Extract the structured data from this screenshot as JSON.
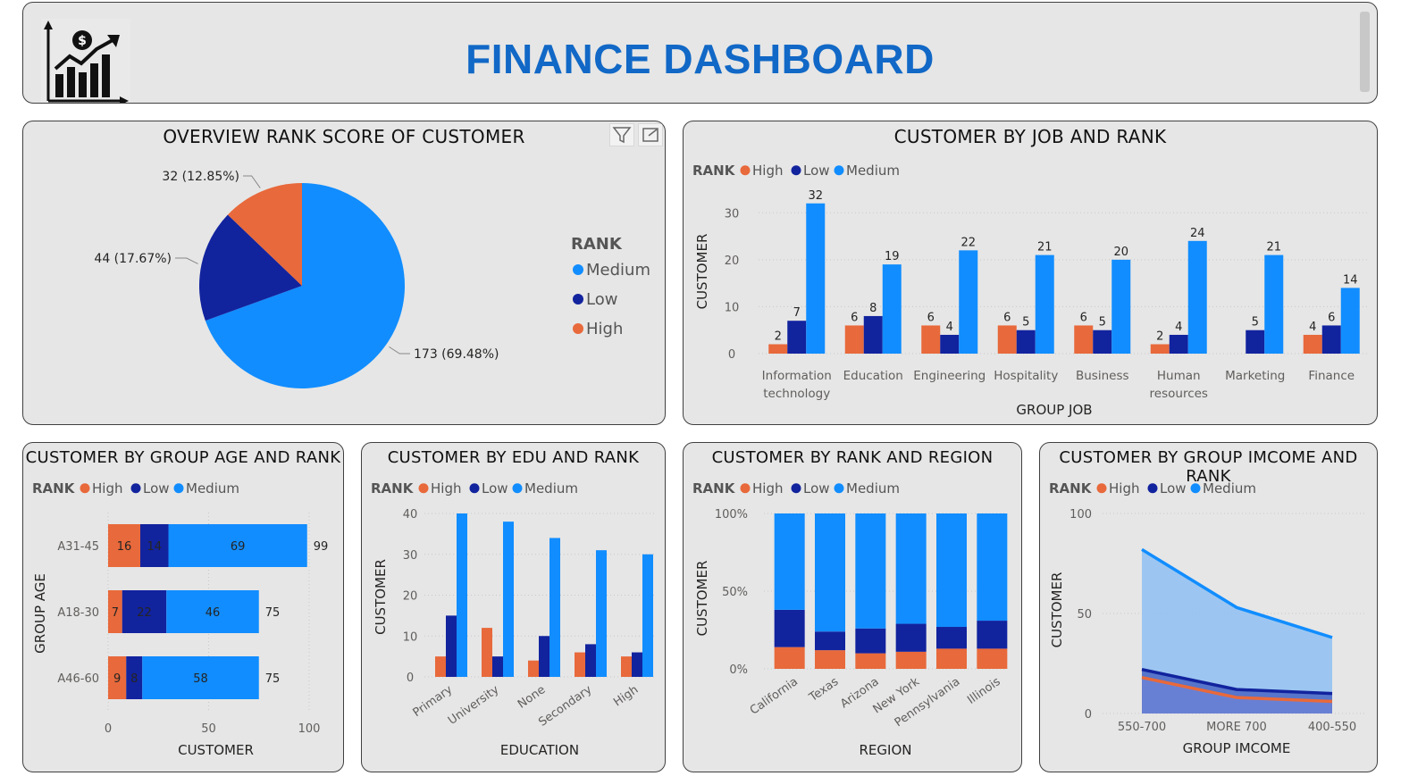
{
  "header": {
    "title": "FINANCE DASHBOARD"
  },
  "colors": {
    "high": "#e8693b",
    "low": "#12239e",
    "medium": "#118dff",
    "panel_bg": "#e6e6e6",
    "title_blue": "#1168c6"
  },
  "legend": {
    "title": "RANK",
    "high": "High",
    "low": "Low",
    "medium": "Medium"
  },
  "pie": {
    "title": "OVERVIEW RANK SCORE OF CUSTOMER",
    "chart_data": {
      "type": "pie",
      "slices": [
        {
          "name": "Medium",
          "value": 173,
          "label": "173 (69.48%)"
        },
        {
          "name": "Low",
          "value": 44,
          "label": "44 (17.67%)"
        },
        {
          "name": "High",
          "value": 32,
          "label": "32 (12.85%)"
        }
      ],
      "legend_order": [
        "Medium",
        "Low",
        "High"
      ]
    }
  },
  "job": {
    "title": "CUSTOMER BY JOB AND RANK",
    "chart_data": {
      "type": "bar",
      "categories": [
        [
          "Information",
          "technology"
        ],
        [
          "Education"
        ],
        [
          "Engineering"
        ],
        [
          "Hospitality"
        ],
        [
          "Business"
        ],
        [
          "Human",
          "resources"
        ],
        [
          "Marketing"
        ],
        [
          "Finance"
        ]
      ],
      "series": [
        {
          "name": "High",
          "values": [
            2,
            6,
            6,
            6,
            6,
            2,
            null,
            4
          ]
        },
        {
          "name": "Low",
          "values": [
            7,
            8,
            4,
            5,
            5,
            4,
            5,
            6
          ]
        },
        {
          "name": "Medium",
          "values": [
            32,
            19,
            22,
            21,
            20,
            24,
            21,
            14
          ]
        }
      ],
      "xlabel": "GROUP JOB",
      "ylabel": "CUSTOMER",
      "ylim": [
        0,
        35
      ],
      "yticks": [
        0,
        10,
        20,
        30
      ]
    }
  },
  "age": {
    "title": "CUSTOMER BY GROUP AGE AND RANK",
    "chart_data": {
      "type": "bar",
      "orientation": "horizontal-stacked",
      "categories": [
        "A31-45",
        "A18-30",
        "A46-60"
      ],
      "series": [
        {
          "name": "High",
          "values": [
            16,
            7,
            9
          ]
        },
        {
          "name": "Low",
          "values": [
            14,
            22,
            8
          ]
        },
        {
          "name": "Medium",
          "values": [
            69,
            46,
            58
          ]
        }
      ],
      "totals": [
        99,
        75,
        75
      ],
      "xlabel": "CUSTOMER",
      "ylabel": "GROUP AGE",
      "xlim": [
        0,
        100
      ],
      "xticks": [
        0,
        50,
        100
      ]
    }
  },
  "edu": {
    "title": "CUSTOMER BY EDU AND RANK",
    "chart_data": {
      "type": "bar",
      "categories": [
        "Primary",
        "University",
        "None",
        "Secondary",
        "High"
      ],
      "series": [
        {
          "name": "High",
          "values": [
            5,
            12,
            4,
            6,
            5
          ]
        },
        {
          "name": "Low",
          "values": [
            15,
            5,
            10,
            8,
            6
          ]
        },
        {
          "name": "Medium",
          "values": [
            40,
            38,
            34,
            31,
            30
          ]
        }
      ],
      "xlabel": "EDUCATION",
      "ylabel": "CUSTOMER",
      "ylim": [
        0,
        40
      ],
      "yticks": [
        0,
        10,
        20,
        30,
        40
      ]
    }
  },
  "region": {
    "title": "CUSTOMER BY RANK AND REGION",
    "chart_data": {
      "type": "bar",
      "orientation": "100%-stacked",
      "categories": [
        "California",
        "Texas",
        "Arizona",
        "New York",
        "Pennsylvania",
        "Illinois"
      ],
      "series": [
        {
          "name": "High",
          "values": [
            14,
            12,
            10,
            11,
            13,
            13
          ]
        },
        {
          "name": "Low",
          "values": [
            24,
            12,
            16,
            18,
            14,
            18
          ]
        },
        {
          "name": "Medium",
          "values": [
            62,
            76,
            74,
            71,
            73,
            69
          ]
        }
      ],
      "xlabel": "REGION",
      "ylabel": "CUSTOMER",
      "ylim": [
        0,
        100
      ],
      "yticks": [
        "0%",
        "50%",
        "100%"
      ]
    }
  },
  "income": {
    "title": "CUSTOMER BY GROUP IMCOME AND RANK",
    "chart_data": {
      "type": "area",
      "categories": [
        "550-700",
        "MORE 700",
        "400-550"
      ],
      "series": [
        {
          "name": "High",
          "values": [
            18,
            8,
            6
          ]
        },
        {
          "name": "Low",
          "values": [
            22,
            12,
            10
          ]
        },
        {
          "name": "Medium",
          "values": [
            82,
            53,
            38
          ]
        }
      ],
      "xlabel": "GROUP IMCOME",
      "ylabel": "CUSTOMER",
      "ylim": [
        0,
        100
      ],
      "yticks": [
        0,
        50,
        100
      ]
    }
  }
}
